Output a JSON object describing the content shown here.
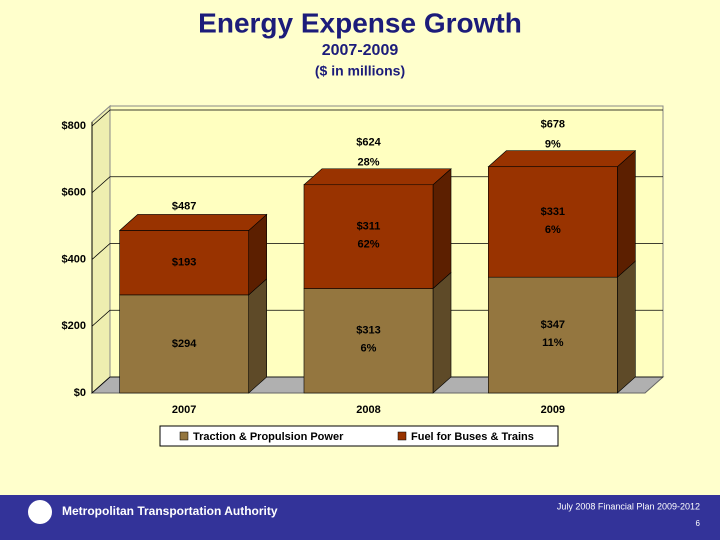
{
  "chart_data": {
    "type": "bar3d_stacked",
    "title": "Energy Expense Growth",
    "subtitle": "2007-2009",
    "unit_note": "($ in millions)",
    "categories": [
      "2007",
      "2008",
      "2009"
    ],
    "series": [
      {
        "name": "Traction & Propulsion Power",
        "color": "#94763f",
        "side_color": "#5e4a28",
        "values": [
          294,
          313,
          347
        ],
        "value_labels": [
          "$294",
          "$313",
          "$347"
        ],
        "growth_labels": [
          null,
          "6%",
          "11%"
        ]
      },
      {
        "name": "Fuel for Buses & Trains",
        "color": "#993300",
        "side_color": "#5c1f00",
        "values": [
          193,
          311,
          331
        ],
        "value_labels": [
          "$193",
          "$311",
          "$331"
        ],
        "growth_labels": [
          null,
          "62%",
          "6%"
        ]
      }
    ],
    "totals": [
      487,
      624,
      678
    ],
    "total_labels": [
      "$487",
      "$624",
      "$678"
    ],
    "total_growth_labels": [
      null,
      "28%",
      "9%"
    ],
    "ylim": [
      0,
      800
    ],
    "yticks": [
      {
        "value": 0,
        "label": "$0"
      },
      {
        "value": 200,
        "label": "$200"
      },
      {
        "value": 400,
        "label": "$400"
      },
      {
        "value": 600,
        "label": "$600"
      },
      {
        "value": 800,
        "label": "$800"
      }
    ],
    "grid": true,
    "legend": "bottom"
  },
  "footer": {
    "organization": "Metropolitan Transportation Authority",
    "plan": "July 2008 Financial Plan 2009-2012",
    "page": "6"
  }
}
